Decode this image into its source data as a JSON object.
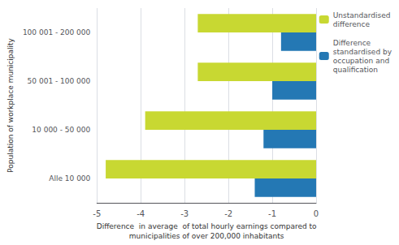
{
  "chart_data": {
    "type": "bar",
    "orientation": "horizontal",
    "categories": [
      "Alle 10 000",
      "10 000 - 50 000",
      "50 001 - 100 000",
      "100 001 - 200 000"
    ],
    "series": [
      {
        "name": "Unstandardised\ndifference",
        "color": "#c8d832",
        "values": [
          -4.8,
          -3.9,
          -2.7,
          -2.7
        ]
      },
      {
        "name": "Difference\nstandardised by\noccupation and\nqualification",
        "color": "#2478b4",
        "values": [
          -1.4,
          -1.2,
          -1.0,
          -0.8
        ]
      }
    ],
    "xlabel": "Difference  in average  of total hourly earnings compared to\nmunicipalities of over 200,000 inhabitants",
    "ylabel": "Population of workplace municipality",
    "xlim": [
      -5,
      0
    ],
    "xticks": [
      -5,
      -4,
      -3,
      -2,
      -1,
      0
    ],
    "grid": true,
    "legend": "upper right"
  }
}
